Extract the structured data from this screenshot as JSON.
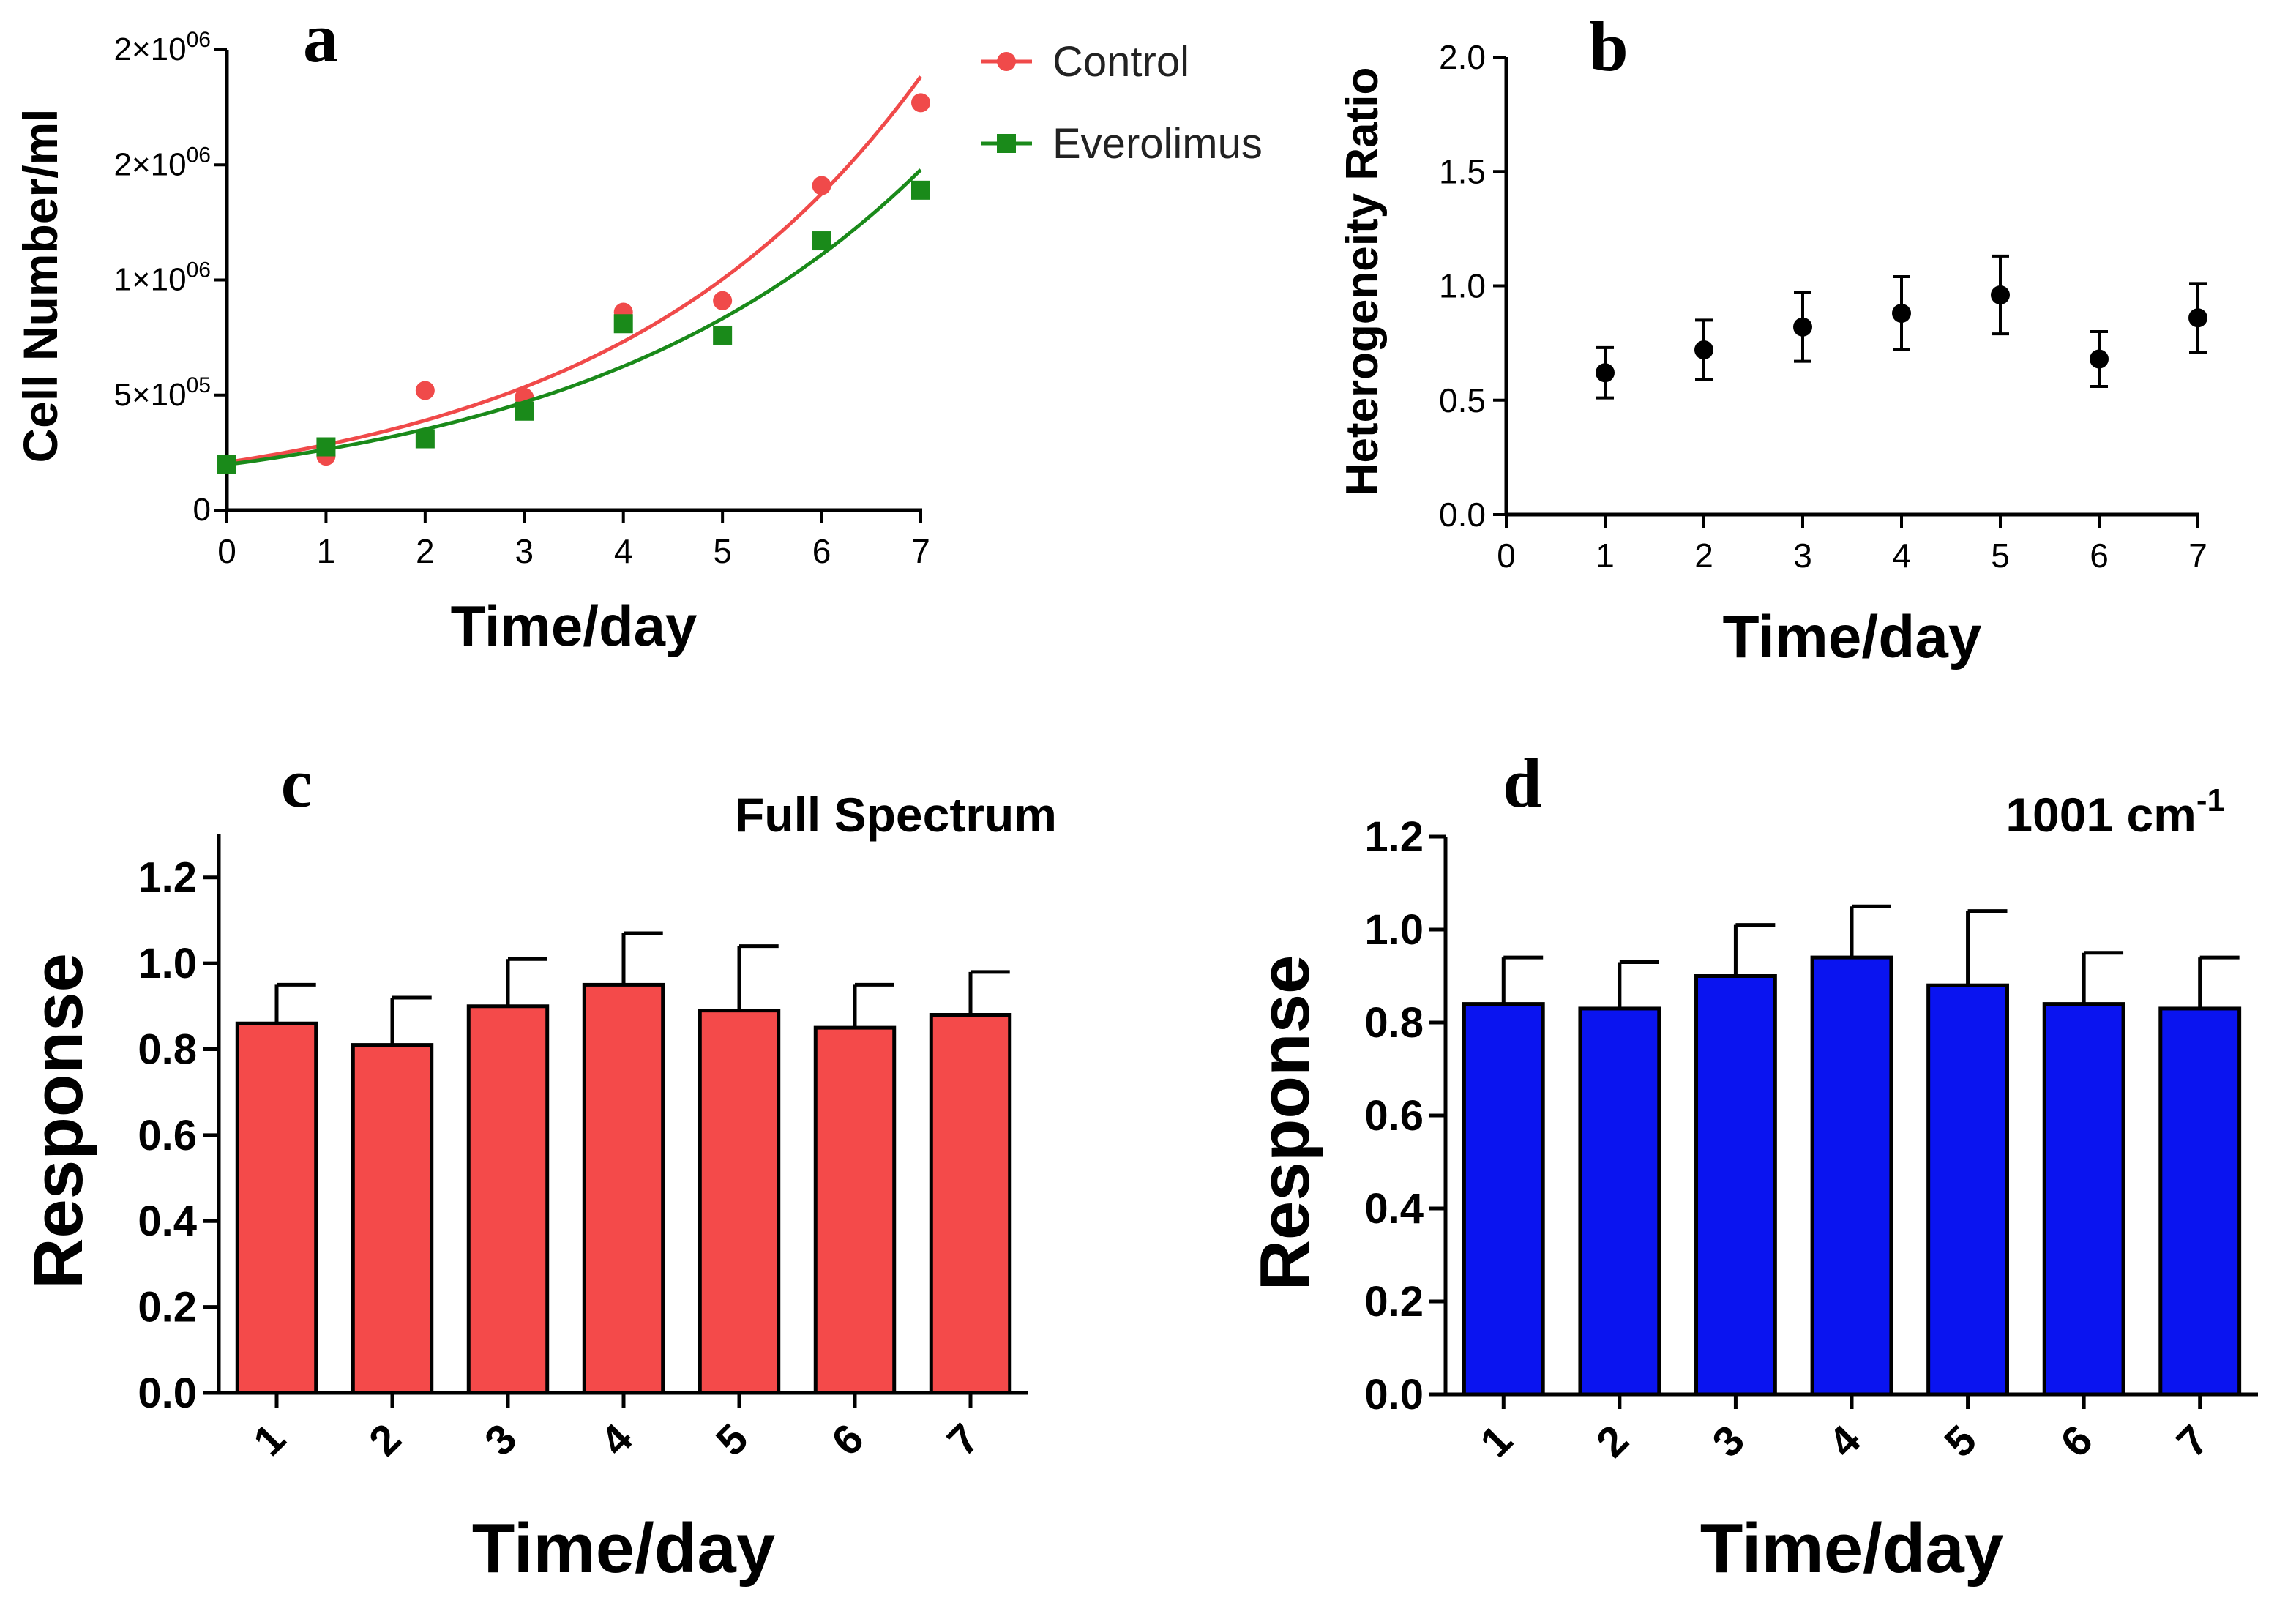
{
  "colors": {
    "control": "#f04a4a",
    "everolimus": "#1a8a1a",
    "bar_red": "#f44a4a",
    "bar_blue": "#0a14f0",
    "ink": "#000000"
  },
  "chart_data": [
    {
      "panel": "a",
      "type": "scatter",
      "title": "",
      "xlabel": "Time/day",
      "ylabel": "Cell Number/ml",
      "xlim": [
        0,
        7
      ],
      "ylim": [
        0,
        2000000
      ],
      "x_ticks": [
        "0",
        "1",
        "2",
        "3",
        "4",
        "5",
        "6",
        "7"
      ],
      "y_ticks": [
        {
          "value": 0,
          "base": "0",
          "exp": ""
        },
        {
          "value": 500000,
          "base": "5×10",
          "exp": "05"
        },
        {
          "value": 1000000,
          "base": "1×10",
          "exp": "06"
        },
        {
          "value": 1500000,
          "base": "2×10",
          "exp": "06"
        },
        {
          "value": 2000000,
          "base": "2×10",
          "exp": "06"
        }
      ],
      "legend_position": "top-right",
      "series": [
        {
          "name": "Control",
          "marker": "circle",
          "x": [
            0,
            1,
            2,
            3,
            4,
            5,
            6,
            7
          ],
          "y": [
            200000,
            235000,
            520000,
            490000,
            860000,
            910000,
            1410000,
            1770000
          ],
          "fit_curve": "exponential"
        },
        {
          "name": "Everolimus",
          "marker": "square",
          "x": [
            0,
            1,
            2,
            3,
            4,
            5,
            6,
            7
          ],
          "y": [
            200000,
            275000,
            310000,
            430000,
            810000,
            760000,
            1170000,
            1390000
          ],
          "fit_curve": "exponential"
        }
      ]
    },
    {
      "panel": "b",
      "type": "scatter",
      "title": "",
      "xlabel": "Time/day",
      "ylabel": "Heterogeneity Ratio",
      "xlim": [
        0,
        7
      ],
      "ylim": [
        0,
        2.0
      ],
      "x_ticks": [
        "0",
        "1",
        "2",
        "3",
        "4",
        "5",
        "6",
        "7"
      ],
      "y_ticks": [
        "0.0",
        "0.5",
        "1.0",
        "1.5",
        "2.0"
      ],
      "series": [
        {
          "name": "Heterogeneity Ratio",
          "x": [
            1,
            2,
            3,
            4,
            5,
            6,
            7
          ],
          "y": [
            0.62,
            0.72,
            0.82,
            0.88,
            0.96,
            0.68,
            0.86
          ],
          "error": [
            0.11,
            0.13,
            0.15,
            0.16,
            0.17,
            0.12,
            0.15
          ]
        }
      ]
    },
    {
      "panel": "c",
      "type": "bar",
      "title": "Full Spectrum",
      "xlabel": "Time/day",
      "ylabel": "Response",
      "ylim": [
        0,
        1.3
      ],
      "categories": [
        "1",
        "2",
        "3",
        "4",
        "5",
        "6",
        "7"
      ],
      "y_ticks": [
        "0.0",
        "0.2",
        "0.4",
        "0.6",
        "0.8",
        "1.0",
        "1.2"
      ],
      "values": [
        0.86,
        0.81,
        0.9,
        0.95,
        0.89,
        0.85,
        0.88
      ],
      "error": [
        0.09,
        0.11,
        0.11,
        0.12,
        0.15,
        0.1,
        0.1
      ]
    },
    {
      "panel": "d",
      "type": "bar",
      "title": "1001 cm",
      "title_superscript": "-1",
      "xlabel": "Time/day",
      "ylabel": "Response",
      "ylim": [
        0,
        1.2
      ],
      "categories": [
        "1",
        "2",
        "3",
        "4",
        "5",
        "6",
        "7"
      ],
      "y_ticks": [
        "0.0",
        "0.2",
        "0.4",
        "0.6",
        "0.8",
        "1.0",
        "1.2"
      ],
      "values": [
        0.84,
        0.83,
        0.9,
        0.94,
        0.88,
        0.84,
        0.83
      ],
      "error": [
        0.1,
        0.1,
        0.11,
        0.11,
        0.16,
        0.11,
        0.11
      ]
    }
  ]
}
